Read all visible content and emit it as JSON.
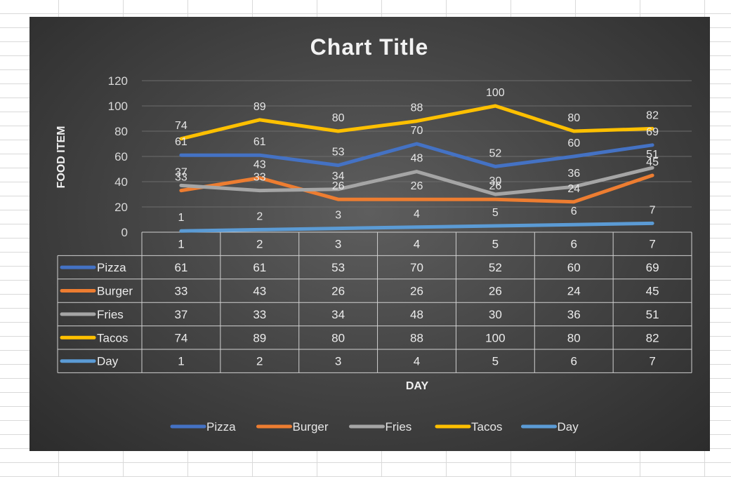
{
  "chart_data": {
    "type": "line",
    "title": "Chart Title",
    "xlabel": "DAY",
    "ylabel": "FOOD ITEM",
    "ylim": [
      0,
      120
    ],
    "yticks": [
      "0",
      "20",
      "40",
      "60",
      "80",
      "100",
      "120"
    ],
    "categories": [
      "1",
      "2",
      "3",
      "4",
      "5",
      "6",
      "7"
    ],
    "series": [
      {
        "name": "Pizza",
        "color": "#4472c4",
        "values": [
          61,
          61,
          53,
          70,
          52,
          60,
          69
        ]
      },
      {
        "name": "Burger",
        "color": "#ed7d31",
        "values": [
          33,
          43,
          26,
          26,
          26,
          24,
          45
        ]
      },
      {
        "name": "Fries",
        "color": "#a5a5a5",
        "values": [
          37,
          33,
          34,
          48,
          30,
          36,
          51
        ]
      },
      {
        "name": "Tacos",
        "color": "#ffc000",
        "values": [
          74,
          89,
          80,
          88,
          100,
          80,
          82
        ]
      },
      {
        "name": "Day",
        "color": "#5b9bd5",
        "values": [
          1,
          2,
          3,
          4,
          5,
          6,
          7
        ]
      }
    ],
    "data_table": true,
    "legend": "bottom",
    "grid": true
  }
}
